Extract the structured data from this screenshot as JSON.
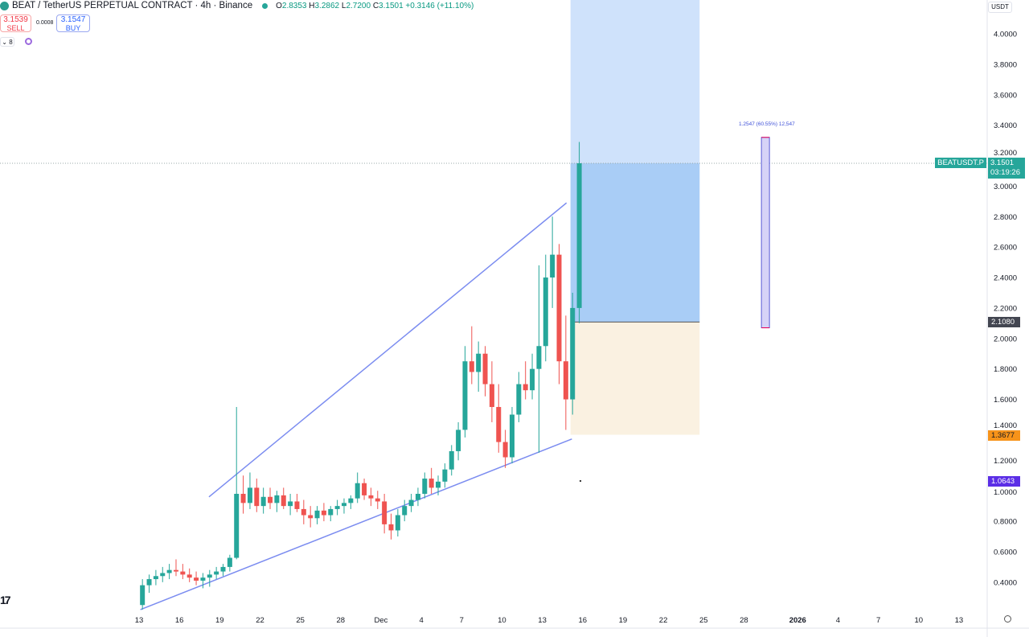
{
  "header": {
    "symbol_title": "BEAT / TetherUS PERPETUAL CONTRACT · 4h · Binance",
    "ohlc": {
      "o_label": "O",
      "o": "2.8353",
      "h_label": "H",
      "h": "3.2862",
      "l_label": "L",
      "l": "2.7200",
      "c_label": "C",
      "c": "3.1501",
      "change": "+0.3146 (+11.10%)"
    },
    "sell_price": "3.1539",
    "sell_label": "SELL",
    "spread": "0.0008",
    "buy_price": "3.1547",
    "buy_label": "BUY",
    "indicator_count": "8"
  },
  "currency": "USDT",
  "price_tags": {
    "symbol": "BEATUSDT.P",
    "last": "3.1501",
    "countdown": "03:19:26",
    "target": "2.1080",
    "stop": "1.3677",
    "marker": "1.0643"
  },
  "measure_label": "1.2547 (60.55%) 12,547",
  "colors": {
    "up": "#26a69a",
    "down": "#ef5350",
    "profit": "#2962ff",
    "loss": "#f5deb3",
    "trend": "#7b8cf0",
    "measure": "#5b5fd6",
    "marker_tag": "#5b2ee6",
    "stop_tag": "#f7931a",
    "target_tag": "#434651"
  },
  "chart_data": {
    "type": "candlestick",
    "interval": "4h",
    "y_ticks": [
      "4.0000",
      "3.8000",
      "3.6000",
      "3.4000",
      "3.2000",
      "3.0000",
      "2.8000",
      "2.6000",
      "2.4000",
      "2.2000",
      "2.0000",
      "1.8000",
      "1.6000",
      "1.4000",
      "1.2000",
      "1.0000",
      "0.8000",
      "0.6000",
      "0.4000"
    ],
    "x_ticks": [
      "13",
      "16",
      "19",
      "22",
      "25",
      "28",
      "Dec",
      "4",
      "7",
      "10",
      "13",
      "16",
      "19",
      "22",
      "25",
      "28",
      "2026",
      "4",
      "7",
      "10",
      "13"
    ],
    "ylim": [
      0.2,
      4.2
    ],
    "candles_12h_ohlc": [
      [
        0.25,
        0.42,
        0.22,
        0.38
      ],
      [
        0.38,
        0.45,
        0.33,
        0.42
      ],
      [
        0.42,
        0.48,
        0.38,
        0.44
      ],
      [
        0.44,
        0.5,
        0.4,
        0.46
      ],
      [
        0.46,
        0.52,
        0.42,
        0.48
      ],
      [
        0.48,
        0.55,
        0.44,
        0.47
      ],
      [
        0.47,
        0.52,
        0.42,
        0.45
      ],
      [
        0.45,
        0.49,
        0.4,
        0.43
      ],
      [
        0.43,
        0.47,
        0.38,
        0.41
      ],
      [
        0.41,
        0.46,
        0.36,
        0.43
      ],
      [
        0.43,
        0.48,
        0.37,
        0.45
      ],
      [
        0.45,
        0.5,
        0.42,
        0.47
      ],
      [
        0.47,
        0.52,
        0.44,
        0.5
      ],
      [
        0.5,
        0.58,
        0.47,
        0.56
      ],
      [
        0.56,
        1.55,
        0.55,
        0.98
      ],
      [
        0.98,
        1.1,
        0.85,
        0.92
      ],
      [
        0.92,
        1.12,
        0.88,
        1.02
      ],
      [
        1.02,
        1.08,
        0.86,
        0.9
      ],
      [
        0.9,
        1.02,
        0.85,
        0.96
      ],
      [
        0.96,
        1.02,
        0.88,
        0.92
      ],
      [
        0.92,
        1.0,
        0.86,
        0.97
      ],
      [
        0.97,
        1.02,
        0.88,
        0.9
      ],
      [
        0.9,
        0.98,
        0.84,
        0.93
      ],
      [
        0.93,
        0.98,
        0.86,
        0.88
      ],
      [
        0.88,
        0.94,
        0.78,
        0.84
      ],
      [
        0.84,
        0.9,
        0.76,
        0.82
      ],
      [
        0.82,
        0.9,
        0.78,
        0.87
      ],
      [
        0.87,
        0.92,
        0.8,
        0.84
      ],
      [
        0.84,
        0.9,
        0.8,
        0.88
      ],
      [
        0.88,
        0.94,
        0.84,
        0.9
      ],
      [
        0.9,
        0.95,
        0.85,
        0.92
      ],
      [
        0.92,
        0.97,
        0.88,
        0.95
      ],
      [
        0.95,
        1.12,
        0.92,
        1.05
      ],
      [
        1.05,
        1.08,
        0.94,
        0.97
      ],
      [
        0.97,
        1.02,
        0.9,
        0.95
      ],
      [
        0.95,
        1.0,
        0.88,
        0.93
      ],
      [
        0.93,
        0.98,
        0.72,
        0.78
      ],
      [
        0.78,
        0.85,
        0.68,
        0.74
      ],
      [
        0.74,
        0.88,
        0.7,
        0.84
      ],
      [
        0.84,
        0.94,
        0.8,
        0.9
      ],
      [
        0.9,
        0.98,
        0.86,
        0.94
      ],
      [
        0.94,
        1.02,
        0.9,
        0.98
      ],
      [
        0.98,
        1.12,
        0.95,
        1.08
      ],
      [
        1.08,
        1.15,
        0.98,
        1.02
      ],
      [
        1.02,
        1.1,
        0.97,
        1.06
      ],
      [
        1.06,
        1.18,
        1.02,
        1.14
      ],
      [
        1.14,
        1.3,
        1.1,
        1.26
      ],
      [
        1.26,
        1.45,
        1.2,
        1.4
      ],
      [
        1.4,
        1.95,
        1.35,
        1.85
      ],
      [
        1.85,
        2.08,
        1.7,
        1.78
      ],
      [
        1.78,
        1.98,
        1.65,
        1.9
      ],
      [
        1.9,
        1.95,
        1.62,
        1.7
      ],
      [
        1.7,
        1.85,
        1.45,
        1.55
      ],
      [
        1.55,
        1.7,
        1.25,
        1.32
      ],
      [
        1.32,
        1.4,
        1.15,
        1.22
      ],
      [
        1.22,
        1.55,
        1.18,
        1.5
      ],
      [
        1.5,
        1.78,
        1.45,
        1.7
      ],
      [
        1.7,
        1.85,
        1.6,
        1.66
      ],
      [
        1.66,
        1.9,
        1.6,
        1.8
      ],
      [
        1.8,
        2.48,
        1.25,
        1.95
      ],
      [
        1.95,
        2.55,
        1.85,
        2.4
      ],
      [
        2.4,
        2.8,
        2.2,
        2.55
      ],
      [
        2.55,
        2.62,
        1.7,
        1.85
      ],
      [
        1.85,
        2.15,
        1.4,
        1.6
      ],
      [
        1.6,
        2.3,
        1.5,
        2.2
      ],
      [
        2.2,
        3.29,
        2.1,
        3.15
      ]
    ],
    "last_price": 3.1501,
    "trendlines": [
      {
        "from": {
          "date": "Nov 18",
          "price": 0.96
        },
        "to": {
          "date": "Dec 14",
          "price": 2.89
        }
      },
      {
        "from": {
          "date": "Nov 13",
          "price": 0.22
        },
        "to": {
          "date": "Dec 15",
          "price": 1.34
        }
      }
    ],
    "long_position": {
      "start_date": "Dec 15",
      "end_date": "Dec 24",
      "entry": 2.108,
      "stop": 1.3677,
      "target": 4.2
    },
    "measure": {
      "date": "Dec 29",
      "from": 2.07,
      "to": 3.32,
      "change": 1.2547,
      "percent": 60.55
    },
    "marker_price": 1.0643
  }
}
